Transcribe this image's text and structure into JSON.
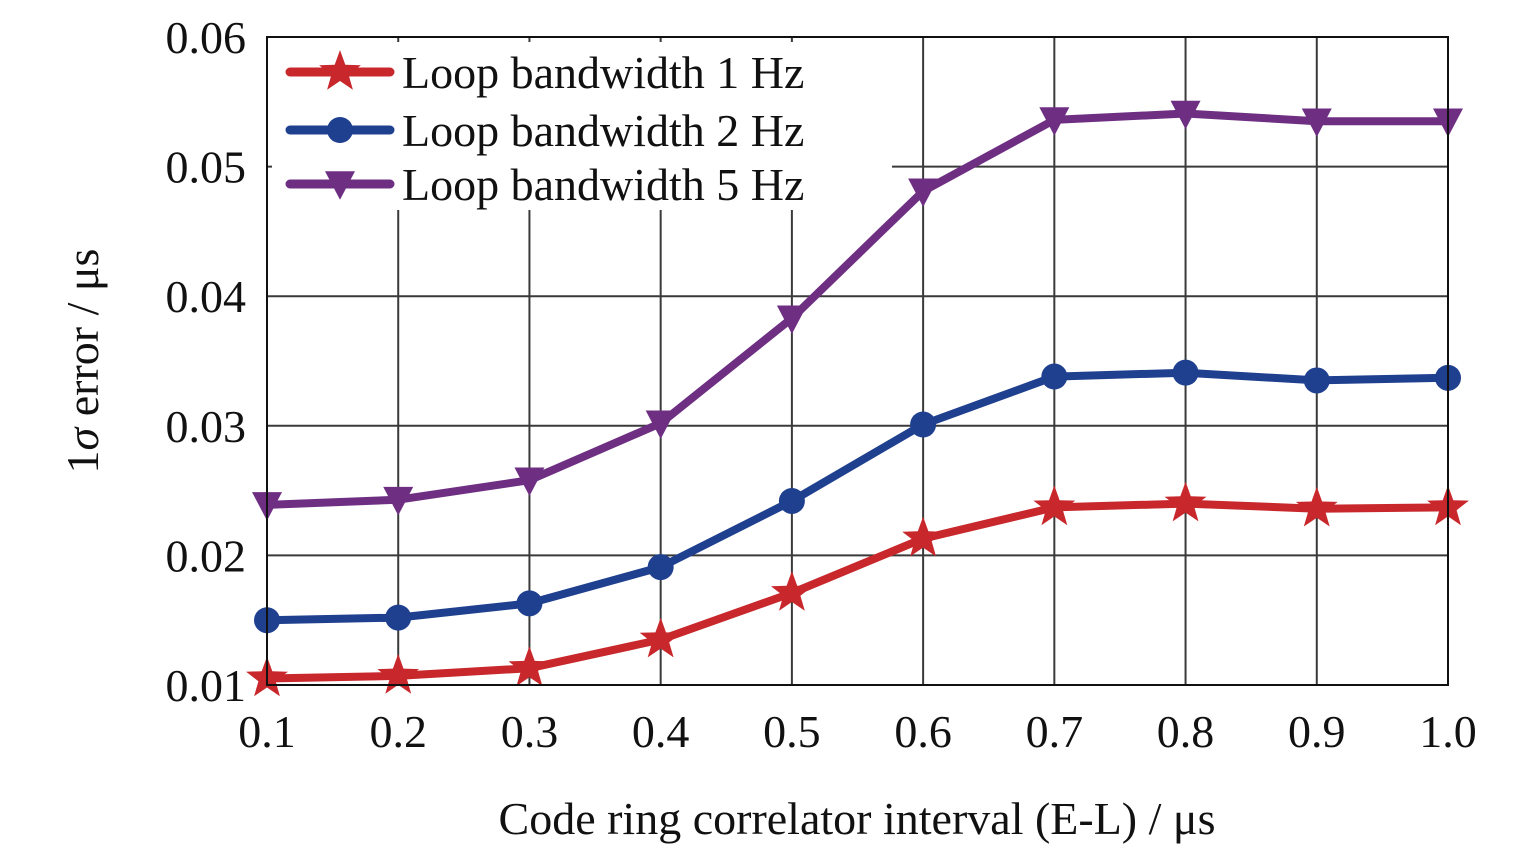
{
  "chart_data": {
    "type": "line",
    "xlabel": "Code ring correlator interval (E-L) / μs",
    "ylabel": {
      "prefix": "1",
      "symbol": "σ",
      "suffix": " error / μs"
    },
    "xlim": [
      0.1,
      1.0
    ],
    "ylim": [
      0.01,
      0.06
    ],
    "xticks": [
      "0.1",
      "0.2",
      "0.3",
      "0.4",
      "0.5",
      "0.6",
      "0.7",
      "0.8",
      "0.9",
      "1.0"
    ],
    "yticks": [
      "0.01",
      "0.02",
      "0.03",
      "0.04",
      "0.05",
      "0.06"
    ],
    "grid": true,
    "legend_position": "top-left",
    "x": [
      0.1,
      0.2,
      0.3,
      0.4,
      0.5,
      0.6,
      0.7,
      0.8,
      0.9,
      1.0
    ],
    "series": [
      {
        "name": "Loop bandwidth 1 Hz",
        "color": "#c8282c",
        "marker": "star",
        "values": [
          0.0105,
          0.0107,
          0.0113,
          0.0135,
          0.0171,
          0.0213,
          0.0237,
          0.024,
          0.0236,
          0.0237
        ]
      },
      {
        "name": "Loop bandwidth 2 Hz",
        "color": "#1f3f8f",
        "marker": "circle",
        "values": [
          0.015,
          0.0152,
          0.0163,
          0.0191,
          0.0242,
          0.0301,
          0.0338,
          0.0341,
          0.0335,
          0.0337
        ]
      },
      {
        "name": "Loop bandwidth 5 Hz",
        "color": "#6e2f83",
        "marker": "triangle-down",
        "values": [
          0.0239,
          0.0243,
          0.0258,
          0.0302,
          0.0383,
          0.0481,
          0.0536,
          0.0541,
          0.0535,
          0.0535
        ]
      }
    ]
  }
}
